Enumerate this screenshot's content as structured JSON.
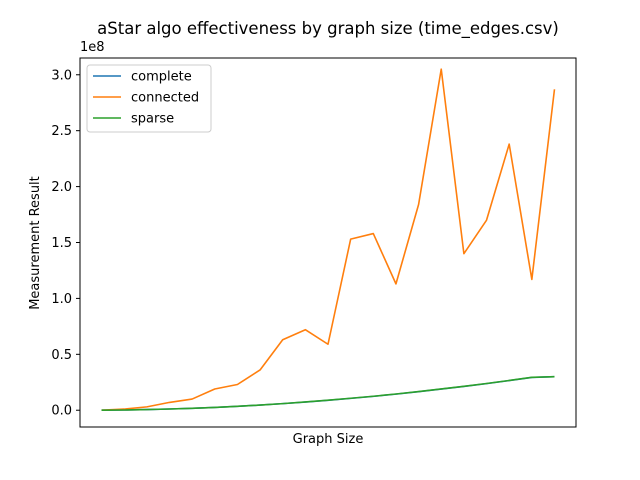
{
  "chart_data": {
    "type": "line",
    "title": "aStar algo effectiveness by graph size (time_edges.csv)",
    "xlabel": "Graph Size",
    "ylabel": "Measurement Result",
    "y_offset_label": "1e8",
    "y_tick_labels": [
      "0.0",
      "0.5",
      "1.0",
      "1.5",
      "2.0",
      "2.5",
      "3.0"
    ],
    "y_tick_values": [
      0.0,
      0.5,
      1.0,
      1.5,
      2.0,
      2.5,
      3.0
    ],
    "ylim": [
      -0.15,
      3.15
    ],
    "xlim": [
      -0.95,
      20.95
    ],
    "x": [
      0,
      1,
      2,
      3,
      4,
      5,
      6,
      7,
      8,
      9,
      10,
      11,
      12,
      13,
      14,
      15,
      16,
      17,
      18,
      19,
      20
    ],
    "grid": false,
    "legend_position": "upper left",
    "series": [
      {
        "name": "complete",
        "color": "#1f77b4",
        "values": [
          0.0,
          0.002,
          0.006,
          0.011,
          0.017,
          0.025,
          0.035,
          0.046,
          0.059,
          0.073,
          0.089,
          0.106,
          0.124,
          0.144,
          0.166,
          0.189,
          0.213,
          0.238,
          0.265,
          0.293,
          0.3
        ]
      },
      {
        "name": "connected",
        "color": "#ff7f0e",
        "values": [
          0.0,
          0.01,
          0.03,
          0.07,
          0.1,
          0.19,
          0.23,
          0.36,
          0.63,
          0.72,
          0.59,
          1.53,
          1.58,
          1.13,
          1.84,
          3.05,
          1.4,
          1.7,
          2.38,
          1.17,
          2.87
        ]
      },
      {
        "name": "sparse",
        "color": "#2ca02c",
        "values": [
          0.0,
          0.002,
          0.006,
          0.011,
          0.017,
          0.025,
          0.035,
          0.046,
          0.059,
          0.074,
          0.09,
          0.107,
          0.125,
          0.145,
          0.167,
          0.19,
          0.214,
          0.239,
          0.266,
          0.294,
          0.3
        ]
      }
    ]
  }
}
